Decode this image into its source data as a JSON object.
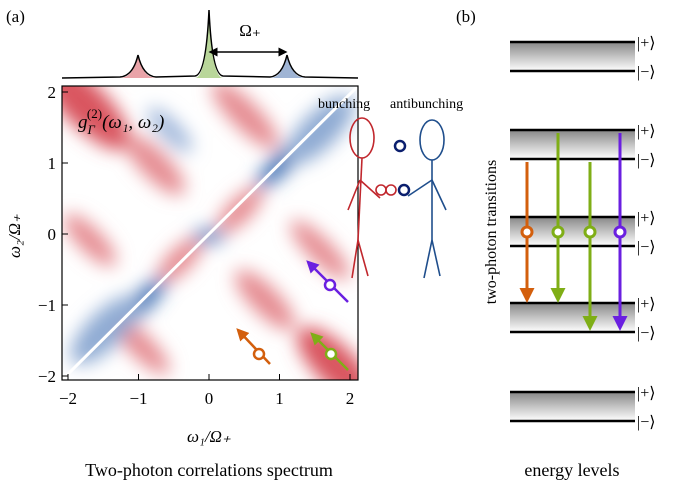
{
  "panel_a": {
    "label": "(a)",
    "peak_label": "Ω₊",
    "inset_label": {
      "main": "g",
      "sub": "Γ",
      "sup": "(2)",
      "args": "(ω₁, ω₂)"
    },
    "bunching": "bunching",
    "antibunching": "antibunching",
    "xticks": [
      "−2",
      "−1",
      "0",
      "1",
      "2"
    ],
    "yticks": [
      "−2",
      "−1",
      "0",
      "1",
      "2"
    ],
    "xlabel": "ω₁/Ω₊",
    "ylabel": "ω₂/Ω₊",
    "caption": "Two-photon correlations spectrum"
  },
  "panel_b": {
    "label": "(b)",
    "ylabel": "two-photon transitions",
    "levels": [
      {
        "plus": "|+⟩",
        "minus": "|−⟩"
      },
      {
        "plus": "|+⟩",
        "minus": "|−⟩"
      },
      {
        "plus": "|+⟩",
        "minus": "|−⟩"
      },
      {
        "plus": "|+⟩",
        "minus": "|−⟩"
      },
      {
        "plus": "|+⟩",
        "minus": "|−⟩"
      }
    ],
    "caption": "energy levels"
  }
}
